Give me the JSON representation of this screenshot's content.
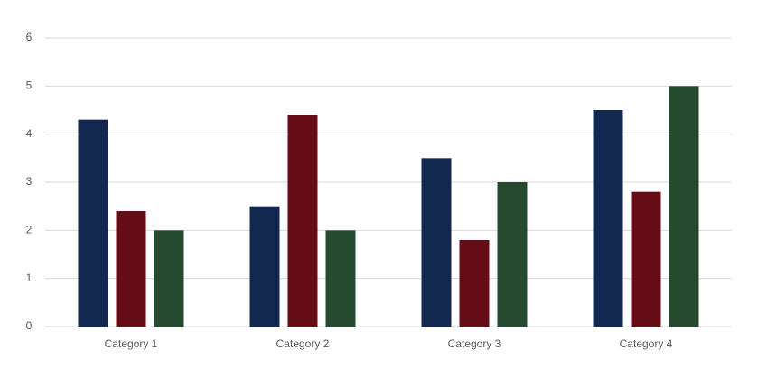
{
  "chart_data": {
    "type": "bar",
    "categories": [
      "Category 1",
      "Category 2",
      "Category 3",
      "Category 4"
    ],
    "series": [
      {
        "color": "#12284f",
        "values": [
          4.3,
          2.5,
          3.5,
          4.5
        ]
      },
      {
        "color": "#660c17",
        "values": [
          2.4,
          4.4,
          1.8,
          2.8
        ]
      },
      {
        "color": "#254a30",
        "values": [
          2,
          2,
          3,
          5
        ]
      }
    ],
    "ylim": [
      0,
      6
    ],
    "yticks": [
      0,
      1,
      2,
      3,
      4,
      5,
      6
    ],
    "grid": true
  }
}
